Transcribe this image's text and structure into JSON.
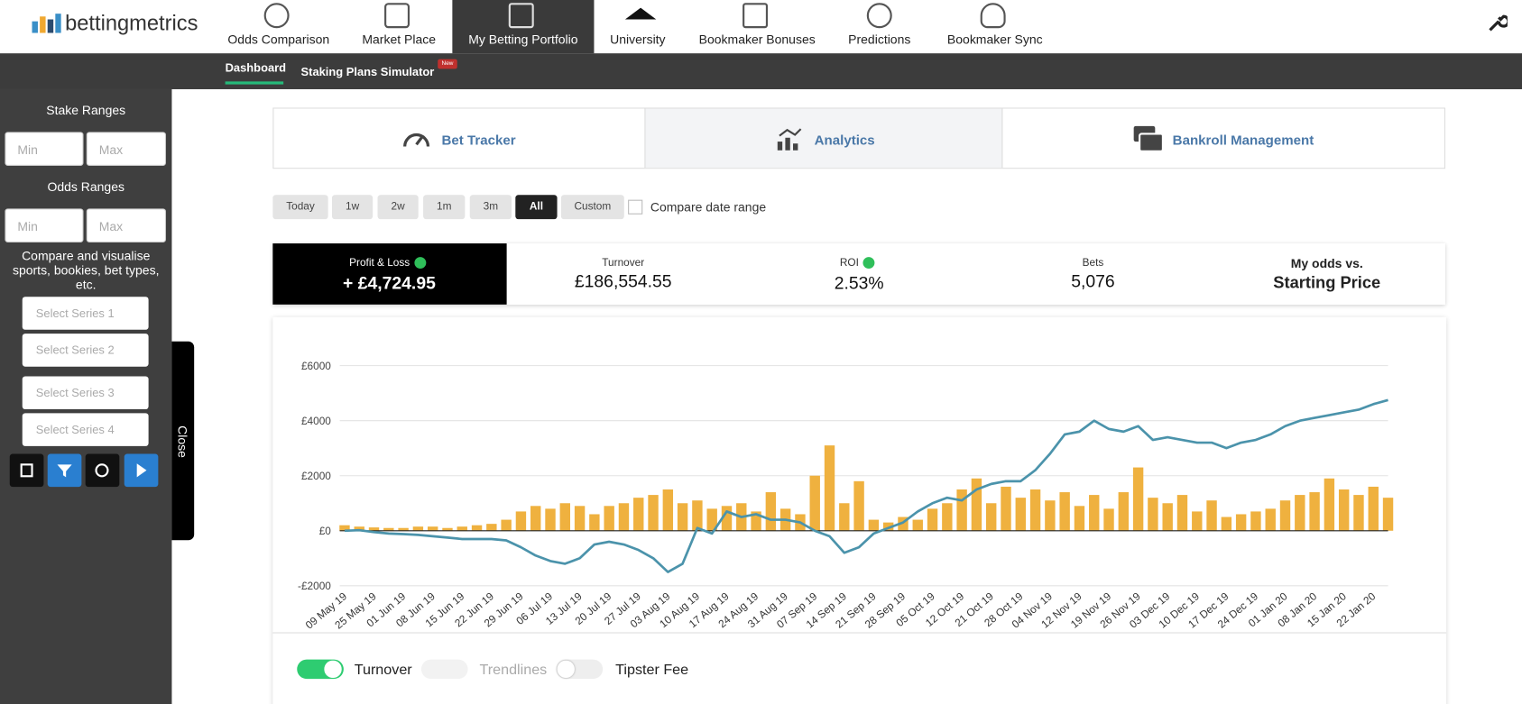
{
  "logo": "bettingmetrics",
  "nav": [
    "Odds Comparison",
    "Market Place",
    "My Betting Portfolio",
    "University",
    "Bookmaker Bonuses",
    "Predictions",
    "Bookmaker Sync"
  ],
  "subnav": {
    "items": [
      "Dashboard",
      "Staking Plans Simulator"
    ],
    "badge": "New"
  },
  "sidebar": {
    "stake_title": "Stake Ranges",
    "odds_title": "Odds Ranges",
    "min": "Min",
    "max": "Max",
    "compare_text": "Compare and visualise sports, bookies, bet types, etc.",
    "selects": [
      "Select Series 1",
      "Select Series 2",
      "Select Series 3",
      "Select Series 4"
    ],
    "close": "Close"
  },
  "tabs": [
    "Bet Tracker",
    "Analytics",
    "Bankroll Management"
  ],
  "date_buttons": [
    "Today",
    "1w",
    "2w",
    "1m",
    "3m",
    "All",
    "Custom"
  ],
  "compare_range": "Compare date range",
  "stats": [
    {
      "label": "Profit & Loss",
      "value": "+ £4,724.95"
    },
    {
      "label": "Turnover",
      "value": "£186,554.55"
    },
    {
      "label": "ROI",
      "value": "2.53%"
    },
    {
      "label": "Bets",
      "value": "5,076"
    },
    {
      "label": "My odds vs.",
      "value": "Starting Price"
    }
  ],
  "toggles": [
    "Trendlines",
    "Tipster Fee"
  ],
  "chart_data": {
    "type": "bar+line",
    "categories": [
      "09 May 19",
      null,
      "25 May 19",
      null,
      "01 Jun 19",
      null,
      "08 Jun 19",
      null,
      "15 Jun 19",
      null,
      "22 Jun 19",
      null,
      "29 Jun 19",
      null,
      "06 Jul 19",
      null,
      "13 Jul 19",
      null,
      "20 Jul 19",
      null,
      "27 Jul 19",
      null,
      "03 Aug 19",
      null,
      "10 Aug 19",
      null,
      "17 Aug 19",
      null,
      "24 Aug 19",
      null,
      "31 Aug 19",
      null,
      "07 Sep 19",
      null,
      "14 Sep 19",
      null,
      "21 Sep 19",
      null,
      "28 Sep 19",
      null,
      "05 Oct 19",
      null,
      "12 Oct 19",
      null,
      "21 Oct 19",
      null,
      "28 Oct 19",
      null,
      "04 Nov 19",
      null,
      "12 Nov 19",
      null,
      "19 Nov 19",
      null,
      "26 Nov 19",
      null,
      "03 Dec 19",
      null,
      "10 Dec 19",
      null,
      "17 Dec 19",
      null,
      "24 Dec 19",
      null,
      "01 Jan 20",
      null,
      "08 Jan 20",
      null,
      "15 Jan 20",
      null,
      "22 Jan 20",
      null
    ],
    "series": [
      {
        "name": "Turnover",
        "kind": "bar",
        "color": "#efb13f",
        "values": [
          200,
          150,
          120,
          100,
          100,
          150,
          150,
          100,
          150,
          200,
          250,
          400,
          700,
          900,
          800,
          1000,
          900,
          600,
          900,
          1000,
          1200,
          1300,
          1500,
          1000,
          1100,
          800,
          900,
          1000,
          700,
          1400,
          800,
          600,
          2000,
          3100,
          1000,
          1800,
          400,
          300,
          500,
          400,
          800,
          1000,
          1500,
          1900,
          1000,
          1600,
          1200,
          1500,
          1100,
          1400,
          900,
          1300,
          800,
          1400,
          2300,
          1200,
          1000,
          1300,
          700,
          1100,
          500,
          600,
          700,
          800,
          1100,
          1300,
          1400,
          1900,
          1500,
          1300,
          1600,
          1200
        ]
      },
      {
        "kind": "line",
        "color": "#4b93ab",
        "values": [
          0,
          20,
          -50,
          -100,
          -120,
          -150,
          -200,
          -250,
          -300,
          -300,
          -300,
          -350,
          -600,
          -900,
          -1100,
          -1200,
          -1000,
          -500,
          -400,
          -500,
          -700,
          -1000,
          -1500,
          -1200,
          100,
          -100,
          700,
          500,
          600,
          400,
          400,
          300,
          0,
          -200,
          -800,
          -600,
          -100,
          100,
          300,
          700,
          1000,
          1200,
          1100,
          1500,
          1700,
          1800,
          1800,
          2200,
          2800,
          3500,
          3600,
          4000,
          3700,
          3600,
          3800,
          3300,
          3400,
          3300,
          3200,
          3200,
          3000,
          3200,
          3300,
          3500,
          3800,
          4000,
          4100,
          4200,
          4300,
          4400,
          4600,
          4750
        ]
      }
    ],
    "ylim": [
      -2000,
      6000
    ],
    "yticks": [
      {
        "value": -2000,
        "label": "-£2000"
      },
      {
        "value": 0,
        "label": "£0"
      },
      {
        "value": 2000,
        "label": "£2000"
      },
      {
        "value": 4000,
        "label": "£4000"
      },
      {
        "value": 6000,
        "label": "£6000"
      }
    ],
    "grid": true
  }
}
